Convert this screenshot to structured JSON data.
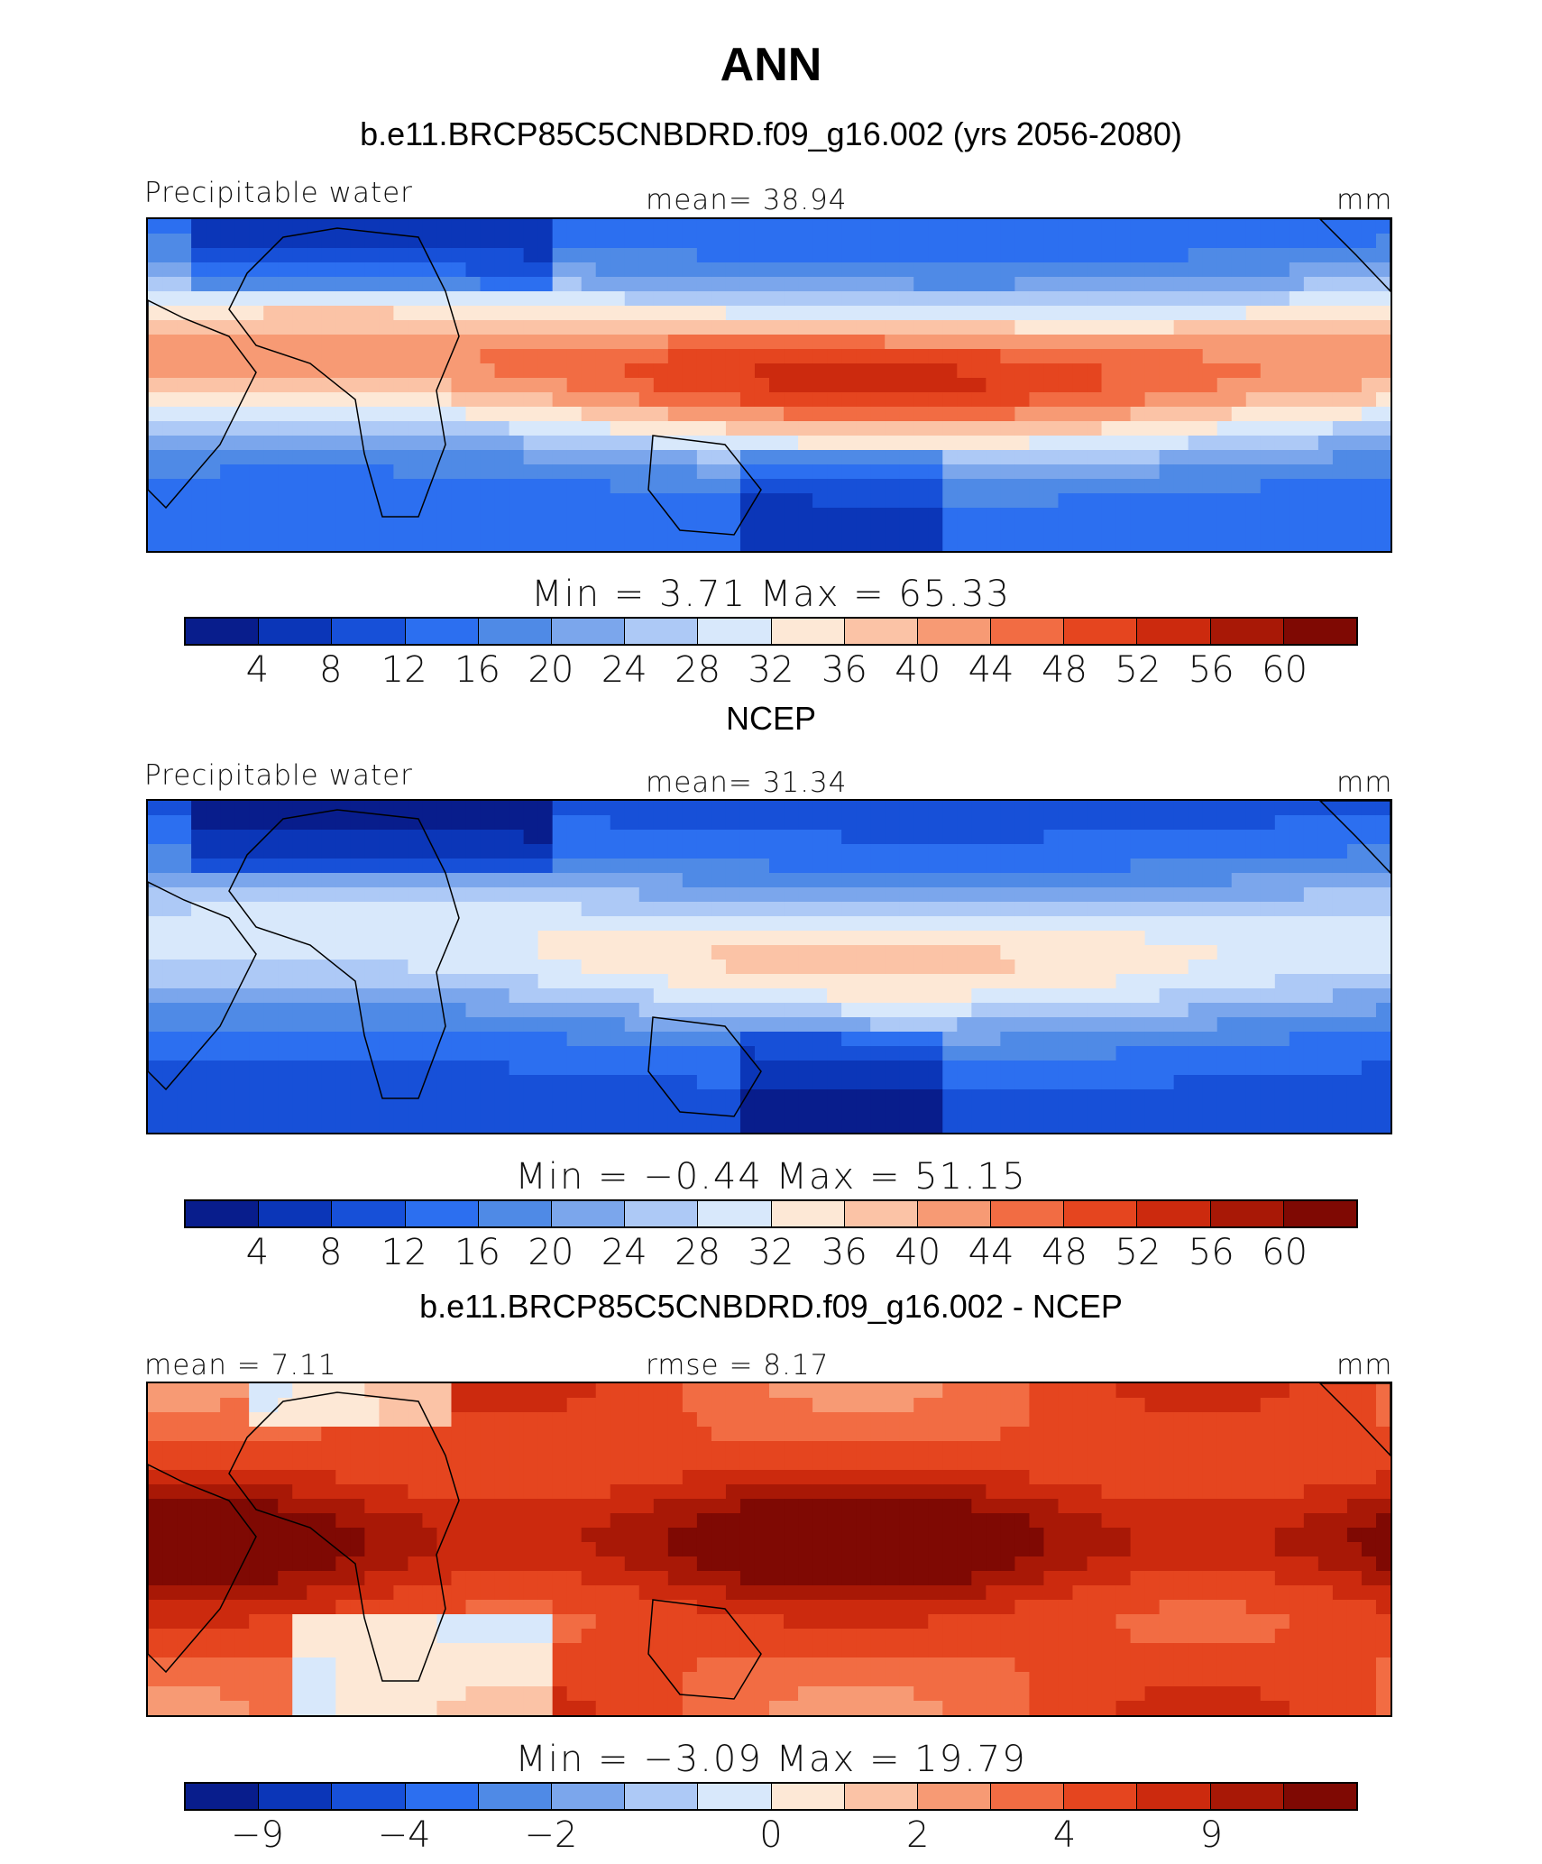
{
  "title": "ANN",
  "palette": [
    "#081d8c",
    "#0b36b8",
    "#1750d8",
    "#2c6ff0",
    "#4f8ae6",
    "#7ba6ec",
    "#adc9f6",
    "#d8e8fb",
    "#fde8d6",
    "#fbc3a6",
    "#f79a74",
    "#f26c43",
    "#e5451f",
    "#cc2a0e",
    "#a81806",
    "#7f0903"
  ],
  "chart_data": [
    {
      "type": "heatmap",
      "title": "b.e11.BRCP85C5CNBDRD.f09_g16.002 (yrs 2056-2080)",
      "left_label": "Precipitable water",
      "center_label": "mean=   38.94",
      "right_label": "mm",
      "min": 3.71,
      "max": 65.33,
      "minmax_text": "Min  =      3.71  Max  =     65.33",
      "colorbar_ticks": [
        "4",
        "8",
        "12",
        "16",
        "20",
        "24",
        "28",
        "32",
        "36",
        "40",
        "44",
        "48",
        "52",
        "56",
        "60"
      ],
      "mean": 38.94,
      "units": "mm"
    },
    {
      "type": "heatmap",
      "title": "NCEP",
      "left_label": "Precipitable water",
      "center_label": "mean=   31.34",
      "right_label": "mm",
      "min": -0.44,
      "max": 51.15,
      "minmax_text": "Min  =    −0.44  Max  =     51.15",
      "colorbar_ticks": [
        "4",
        "8",
        "12",
        "16",
        "20",
        "24",
        "28",
        "32",
        "36",
        "40",
        "44",
        "48",
        "52",
        "56",
        "60"
      ],
      "mean": 31.34,
      "units": "mm"
    },
    {
      "type": "heatmap",
      "title": "b.e11.BRCP85C5CNBDRD.f09_g16.002 - NCEP",
      "left_label": "mean =    7.11",
      "center_label": "rmse  =     8.17",
      "right_label": "mm",
      "min": -3.09,
      "max": 19.79,
      "minmax_text": "Min  =    −3.09  Max  =     19.79",
      "colorbar_ticks": [
        "−9",
        "−4",
        "−2",
        "0",
        "2",
        "4",
        "9"
      ],
      "colorbar_tick_slots": [
        1,
        3,
        5,
        8,
        10,
        12,
        14
      ],
      "mean": 7.11,
      "rmse": 8.17,
      "units": "mm"
    }
  ]
}
